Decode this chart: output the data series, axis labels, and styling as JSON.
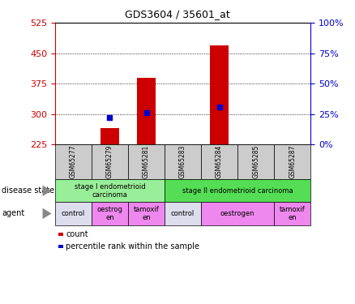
{
  "title": "GDS3604 / 35601_at",
  "samples": [
    "GSM65277",
    "GSM65279",
    "GSM65281",
    "GSM65283",
    "GSM65284",
    "GSM65285",
    "GSM65287"
  ],
  "counts": [
    null,
    265,
    390,
    null,
    470,
    null,
    null
  ],
  "percentile_ranks_pct": [
    null,
    22,
    26,
    null,
    31,
    null,
    null
  ],
  "ylim_left": [
    225,
    525
  ],
  "ylim_right": [
    0,
    100
  ],
  "yticks_left": [
    225,
    300,
    375,
    450,
    525
  ],
  "yticks_right": [
    0,
    25,
    50,
    75,
    100
  ],
  "ytick_labels_right": [
    "0%",
    "25%",
    "50%",
    "75%",
    "100%"
  ],
  "bar_color": "#cc0000",
  "dot_color": "#0000cc",
  "disease_states": [
    {
      "label": "stage I endometrioid\ncarcinoma",
      "start": 0,
      "end": 2,
      "color": "#99ee99"
    },
    {
      "label": "stage II endometrioid carcinoma",
      "start": 3,
      "end": 6,
      "color": "#55dd55"
    }
  ],
  "agents": [
    {
      "label": "control",
      "start": 0,
      "end": 0,
      "color": "#ddddee"
    },
    {
      "label": "oestrog\nen",
      "start": 1,
      "end": 1,
      "color": "#ee88ee"
    },
    {
      "label": "tamoxif\nen",
      "start": 2,
      "end": 2,
      "color": "#ee88ee"
    },
    {
      "label": "control",
      "start": 3,
      "end": 3,
      "color": "#ddddee"
    },
    {
      "label": "oestrogen",
      "start": 4,
      "end": 5,
      "color": "#ee88ee"
    },
    {
      "label": "tamoxif\nen",
      "start": 6,
      "end": 6,
      "color": "#ee88ee"
    }
  ],
  "sample_box_color": "#cccccc",
  "grid_yticks": [
    300,
    375,
    450
  ],
  "tick_color_left": "#cc0000",
  "tick_color_right": "#0000cc",
  "legend_items": [
    {
      "color": "#cc0000",
      "label": "count"
    },
    {
      "color": "#0000cc",
      "label": "percentile rank within the sample"
    }
  ]
}
